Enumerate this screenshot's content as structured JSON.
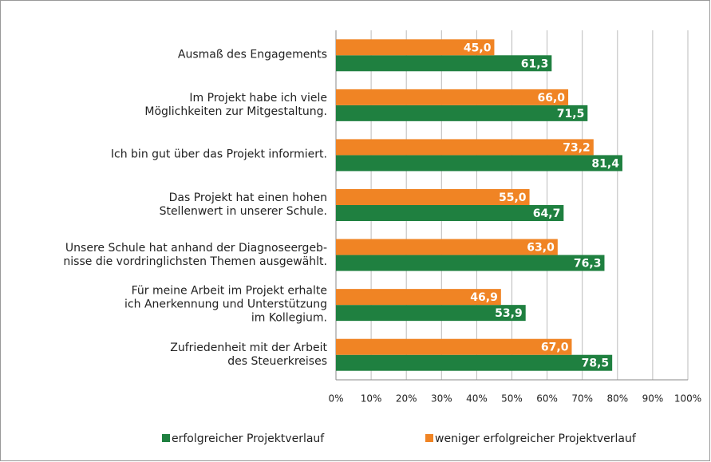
{
  "chart_data": {
    "type": "bar",
    "orientation": "horizontal",
    "categories": [
      "Ausmaß des Engagements",
      "Im Projekt habe ich viele\nMöglichkeiten zur Mitgestaltung.",
      "Ich bin gut über das Projekt informiert.",
      "Das Projekt hat einen hohen\nStellenwert in unserer Schule.",
      "Unsere Schule hat anhand der Diagnoseergeb-\nnisse die vordringlichsten Themen ausgewählt.",
      "Für meine Arbeit im Projekt erhalte\nich Anerkennung und Unterstützung\nim Kollegium.",
      "Zufriedenheit mit der Arbeit\ndes Steuerkreises"
    ],
    "series": [
      {
        "name": "erfolgreicher Projektverlauf",
        "color": "#1f8040",
        "values": [
          61.3,
          71.5,
          81.4,
          64.7,
          76.3,
          53.9,
          78.5
        ],
        "value_labels": [
          "61,3",
          "71,5",
          "81,4",
          "64,7",
          "76,3",
          "53,9",
          "78,5"
        ]
      },
      {
        "name": "weniger erfolgreicher Projektverlauf",
        "color": "#f08424",
        "values": [
          45.0,
          66.0,
          73.2,
          55.0,
          63.0,
          46.9,
          67.0
        ],
        "value_labels": [
          "45,0",
          "66,0",
          "73,2",
          "55,0",
          "63,0",
          "46,9",
          "67,0"
        ]
      }
    ],
    "xlim": [
      0,
      100
    ],
    "xticks": [
      {
        "value": 0,
        "label": "0%"
      },
      {
        "value": 10,
        "label": "10%"
      },
      {
        "value": 20,
        "label": "20%"
      },
      {
        "value": 30,
        "label": "30%"
      },
      {
        "value": 40,
        "label": "40%"
      },
      {
        "value": 50,
        "label": "50%"
      },
      {
        "value": 60,
        "label": "60%"
      },
      {
        "value": 70,
        "label": "70%"
      },
      {
        "value": 80,
        "label": "80%"
      },
      {
        "value": 90,
        "label": "90%"
      },
      {
        "value": 100,
        "label": "100%"
      }
    ],
    "grid": true,
    "legend": "bottom"
  }
}
